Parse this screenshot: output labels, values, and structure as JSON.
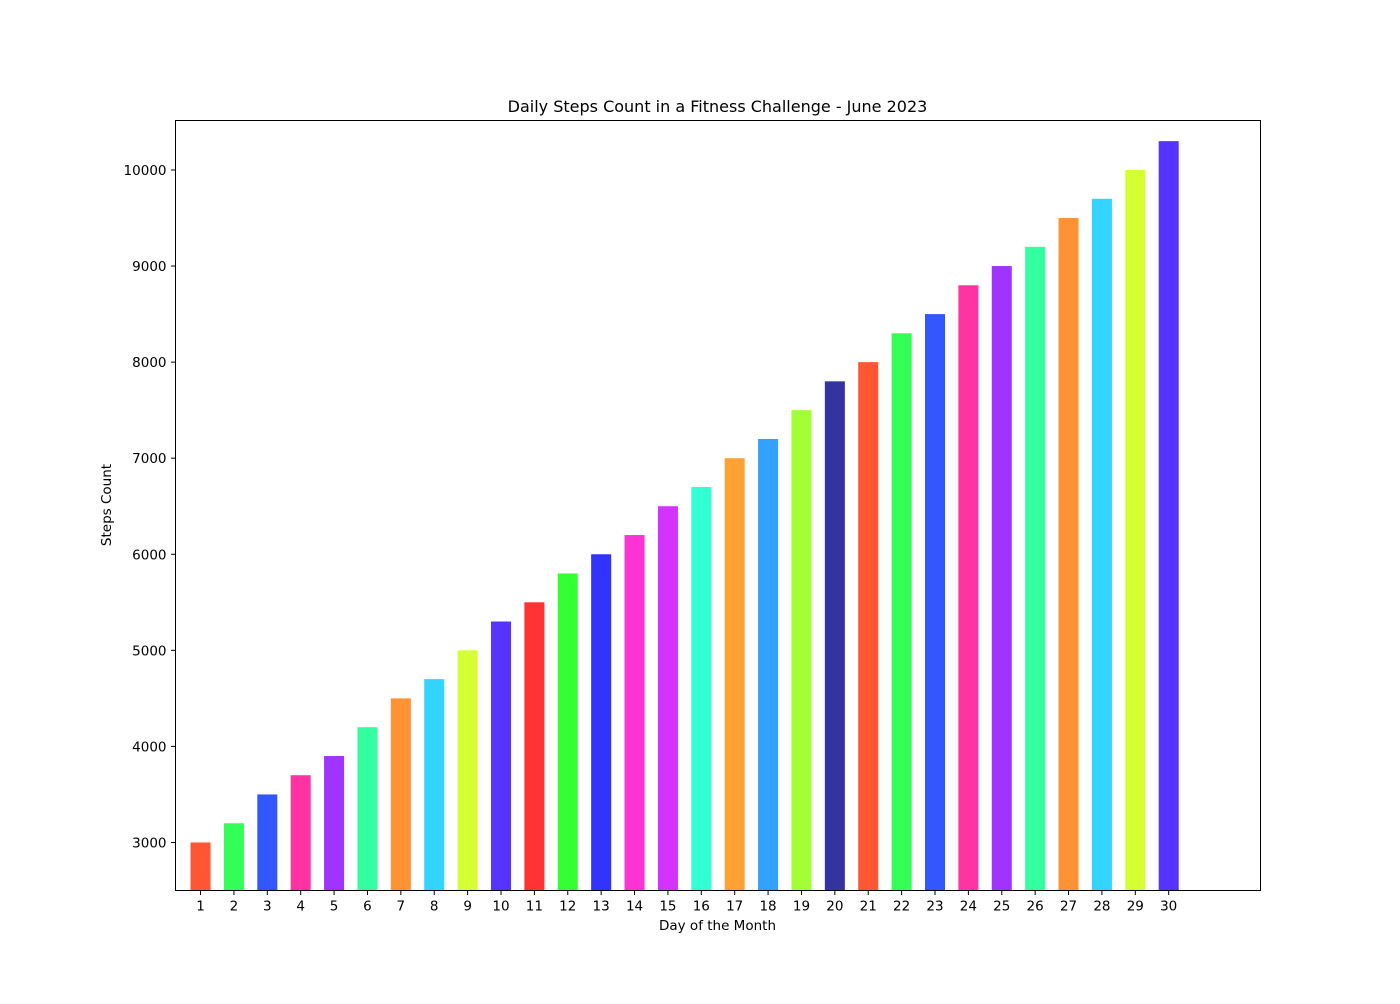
{
  "chart_data": {
    "type": "bar",
    "title": "Daily Steps Count in a Fitness Challenge - June 2023",
    "xlabel": "Day of the Month",
    "ylabel": "Steps Count",
    "categories": [
      "1",
      "2",
      "3",
      "4",
      "5",
      "6",
      "7",
      "8",
      "9",
      "10",
      "11",
      "12",
      "13",
      "14",
      "15",
      "16",
      "17",
      "18",
      "19",
      "20",
      "21",
      "22",
      "23",
      "24",
      "25",
      "26",
      "27",
      "28",
      "29",
      "30"
    ],
    "values": [
      3000,
      3200,
      3500,
      3700,
      3900,
      4200,
      4500,
      4700,
      5000,
      5300,
      5500,
      5800,
      6000,
      6200,
      6500,
      6700,
      7000,
      7200,
      7500,
      7800,
      8000,
      8300,
      8500,
      8800,
      9000,
      9200,
      9500,
      9700,
      10000,
      10300
    ],
    "colors": [
      "#ff5733",
      "#33ff57",
      "#3357ff",
      "#ff33a1",
      "#a133ff",
      "#33ffa1",
      "#ff9233",
      "#33d4ff",
      "#d4ff33",
      "#5733ff",
      "#ff3333",
      "#33ff33",
      "#3333ff",
      "#ff33d4",
      "#d433ff",
      "#33ffd4",
      "#ffa133",
      "#33a1ff",
      "#a1ff33",
      "#3333a1",
      "#ff5733",
      "#33ff57",
      "#3357ff",
      "#ff33a1",
      "#a133ff",
      "#33ffa1",
      "#ff9233",
      "#33d4ff",
      "#d4ff33",
      "#5733ff"
    ],
    "yticks": [
      3000,
      4000,
      5000,
      6000,
      7000,
      8000,
      9000,
      10000
    ],
    "ylim": [
      2500,
      10515
    ],
    "xlim": [
      0.25,
      32.75
    ],
    "grid": false,
    "legend": "none"
  }
}
